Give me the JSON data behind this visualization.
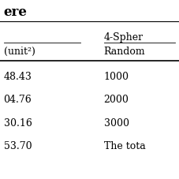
{
  "title": "",
  "col1_header_line1": "",
  "col1_header_line2": "(unit²)",
  "col2_header_line1": "4-Spher",
  "col2_header_line2": "Random",
  "top_text": "ere",
  "rows": [
    [
      "48.43",
      "1000"
    ],
    [
      "04.76",
      "2000"
    ],
    [
      "30.16",
      "3000"
    ],
    [
      "53.70",
      "The tota"
    ]
  ],
  "col1_prefix": "",
  "background_color": "#ffffff",
  "text_color": "#000000",
  "font_size": 9,
  "line_color": "#000000"
}
